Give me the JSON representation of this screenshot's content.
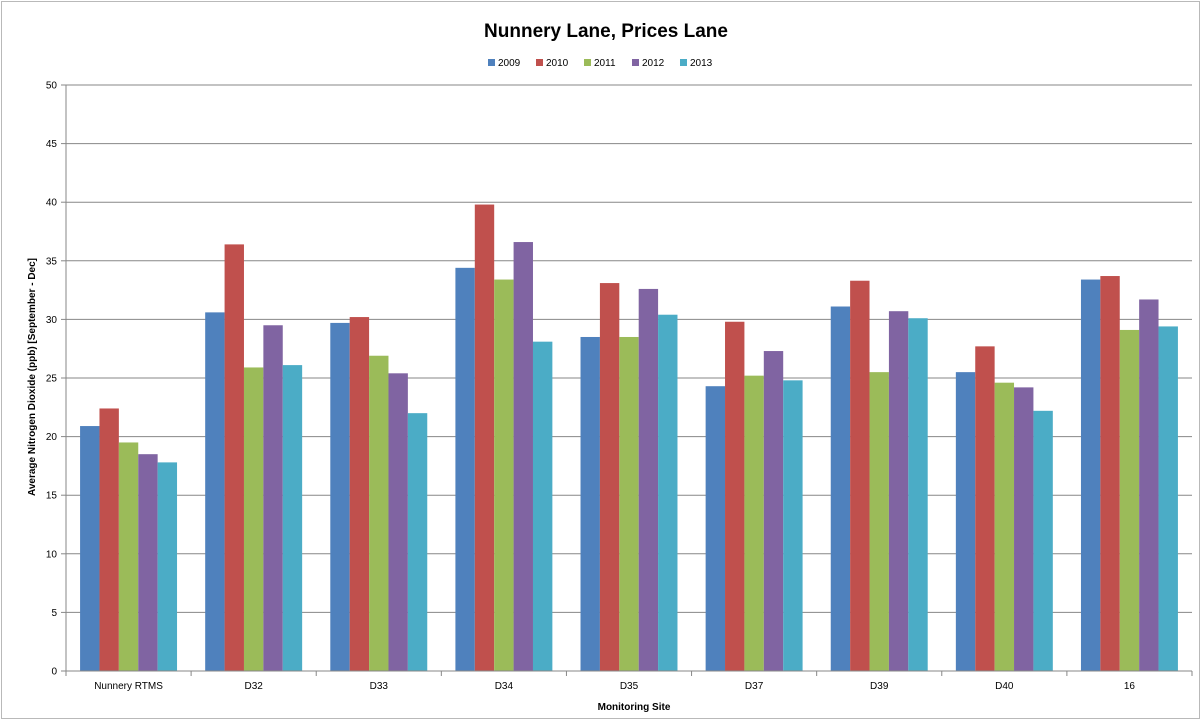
{
  "chart_data": {
    "type": "bar",
    "title": "Nunnery Lane, Prices Lane",
    "xlabel": "Monitoring Site",
    "ylabel": "Average Nitrogen Dioxide (ppb) [September - Dec]",
    "ylim": [
      0,
      50
    ],
    "yticks": [
      0,
      5,
      10,
      15,
      20,
      25,
      30,
      35,
      40,
      45,
      50
    ],
    "grid": true,
    "legend_position": "top",
    "categories": [
      "Nunnery RTMS",
      "D32",
      "D33",
      "D34",
      "D35",
      "D37",
      "D39",
      "D40",
      "16"
    ],
    "series": [
      {
        "name": "2009",
        "color": "#4F81BD",
        "values": [
          20.9,
          30.6,
          29.7,
          34.4,
          28.5,
          24.3,
          31.1,
          25.5,
          33.4
        ]
      },
      {
        "name": "2010",
        "color": "#C0504D",
        "values": [
          22.4,
          36.4,
          30.2,
          39.8,
          33.1,
          29.8,
          33.3,
          27.7,
          33.7
        ]
      },
      {
        "name": "2011",
        "color": "#9BBB59",
        "values": [
          19.5,
          25.9,
          26.9,
          33.4,
          28.5,
          25.2,
          25.5,
          24.6,
          29.1
        ]
      },
      {
        "name": "2012",
        "color": "#8064A2",
        "values": [
          18.5,
          29.5,
          25.4,
          36.6,
          32.6,
          27.3,
          30.7,
          24.2,
          31.7
        ]
      },
      {
        "name": "2013",
        "color": "#4BACC6",
        "values": [
          17.8,
          26.1,
          22.0,
          28.1,
          30.4,
          24.8,
          30.1,
          22.2,
          29.4
        ]
      }
    ]
  }
}
